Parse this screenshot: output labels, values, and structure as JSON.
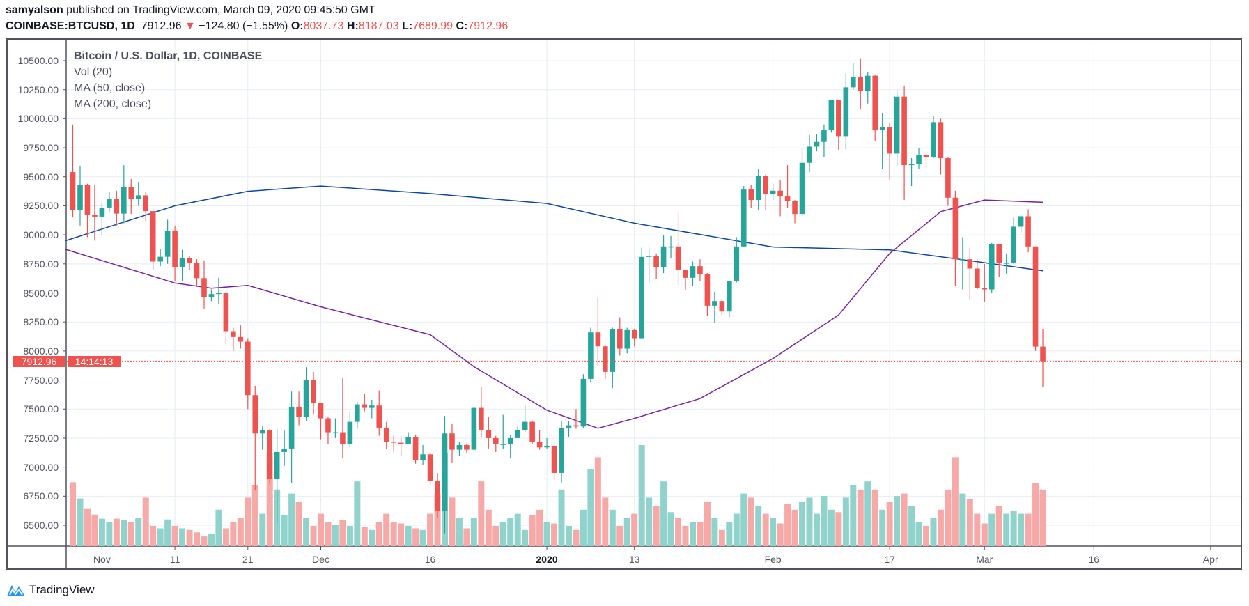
{
  "header": {
    "author": "samyalson",
    "published_text": "published on TradingView.com, March 09, 2020 09:45:50 GMT",
    "symbol": "COINBASE:BTCUSD, 1D",
    "last": "7912.96",
    "change": "−124.80 (−1.55%)",
    "o_label": "O:",
    "o": "8037.73",
    "h_label": "H:",
    "h": "8187.03",
    "l_label": "L:",
    "l": "7689.99",
    "c_label": "C:",
    "c": "7912.96"
  },
  "legend": {
    "title": "Bitcoin / U.S. Dollar, 1D, COINBASE",
    "vol": "Vol (20)",
    "ma50": "MA (50, close)",
    "ma200": "MA (200, close)"
  },
  "price_marker": {
    "price": "7912.96",
    "countdown": "14:14:13"
  },
  "footer": {
    "logo_text": "TradingView"
  },
  "colors": {
    "up": "#26a69a",
    "down": "#ef5350",
    "vol_up": "#8fd3cc",
    "vol_down": "#f7a9a7",
    "ma50": "#7b1fa2",
    "ma200": "#0d47a1",
    "grid": "#e6edf3"
  },
  "chart_data": {
    "type": "candlestick",
    "title": "Bitcoin / U.S. Dollar, 1D, COINBASE",
    "start_date": "2019-10-27",
    "interval": "1D",
    "ylim": [
      6350,
      10650
    ],
    "grid": true,
    "y_ticks": [
      "10500.00",
      "10250.00",
      "10000.00",
      "9750.00",
      "9500.00",
      "9250.00",
      "9000.00",
      "8750.00",
      "8500.00",
      "8250.00",
      "8000.00",
      "7750.00",
      "7500.00",
      "7250.00",
      "7000.00",
      "6750.00",
      "6500.00"
    ],
    "x_ticks": [
      {
        "label": "Nov",
        "date": "2019-11-01"
      },
      {
        "label": "11",
        "date": "2019-11-11"
      },
      {
        "label": "21",
        "date": "2019-11-21"
      },
      {
        "label": "Dec",
        "date": "2019-12-01"
      },
      {
        "label": "16",
        "date": "2019-12-16"
      },
      {
        "label": "2020",
        "date": "2020-01-01"
      },
      {
        "label": "13",
        "date": "2020-01-13"
      },
      {
        "label": "Feb",
        "date": "2020-02-01"
      },
      {
        "label": "17",
        "date": "2020-02-17"
      },
      {
        "label": "Mar",
        "date": "2020-03-01"
      },
      {
        "label": "16",
        "date": "2020-03-16"
      },
      {
        "label": "Apr",
        "date": "2020-04-01"
      }
    ],
    "first_open": 9260,
    "close": [
      9540,
      9213,
      9431,
      9175,
      9157,
      9235,
      9310,
      9183,
      9410,
      9307,
      9340,
      9204,
      8770,
      8811,
      9035,
      8721,
      8800,
      8757,
      8627,
      8462,
      8490,
      8500,
      8170,
      8120,
      8080,
      7620,
      7290,
      7320,
      6900,
      7130,
      7160,
      7520,
      7430,
      7750,
      7550,
      7420,
      7300,
      7300,
      7200,
      7390,
      7540,
      7510,
      7530,
      7340,
      7220,
      7210,
      7200,
      7260,
      7060,
      7110,
      6880,
      6620,
      7290,
      7150,
      7190,
      7150,
      7510,
      7320,
      7250,
      7200,
      7200,
      7250,
      7320,
      7390,
      7220,
      7170,
      7180,
      6950,
      7340,
      7360,
      7350,
      7760,
      8160,
      8040,
      7820,
      8190,
      8020,
      8180,
      8110,
      8810,
      8820,
      8720,
      8900,
      8900,
      8700,
      8630,
      8730,
      8660,
      8390,
      8430,
      8340,
      8600,
      8900,
      9390,
      9300,
      9510,
      9350,
      9380,
      9330,
      9290,
      9180,
      9620,
      9760,
      9800,
      9900,
      10160,
      9850,
      10270,
      10360,
      10240,
      10370,
      9900,
      9930,
      9700,
      10190,
      9600,
      9610,
      9690,
      9670,
      9970,
      9660,
      9320,
      8790,
      8790,
      8710,
      8540,
      8530,
      8920,
      8760,
      8760,
      9070,
      9160,
      8900,
      8037.73,
      7912.96
    ],
    "high": [
      9830,
      9950,
      9590,
      9440,
      9430,
      9280,
      9370,
      9380,
      9600,
      9480,
      9450,
      9370,
      9220,
      8880,
      9130,
      9080,
      8870,
      8820,
      8790,
      8780,
      8530,
      8630,
      8500,
      8200,
      8220,
      8110,
      7700,
      7350,
      7330,
      7330,
      7320,
      7650,
      7650,
      7860,
      7820,
      7550,
      7430,
      7420,
      7770,
      7480,
      7560,
      7630,
      7580,
      7660,
      7390,
      7270,
      7260,
      7300,
      7280,
      7190,
      7130,
      6950,
      7440,
      7370,
      7220,
      7200,
      7520,
      7690,
      7430,
      7270,
      7450,
      7280,
      7350,
      7530,
      7400,
      7320,
      7250,
      7190,
      7400,
      7400,
      7500,
      7800,
      8200,
      8460,
      8050,
      8200,
      8290,
      8200,
      8190,
      8890,
      8890,
      8840,
      9000,
      8990,
      9190,
      8700,
      8770,
      8790,
      8670,
      8510,
      8440,
      8600,
      8980,
      9420,
      9430,
      9570,
      9520,
      9440,
      9470,
      9600,
      9300,
      9750,
      9860,
      9870,
      9950,
      10160,
      10160,
      10390,
      10480,
      10520,
      10400,
      10380,
      10050,
      9960,
      10250,
      10280,
      9660,
      9750,
      9700,
      10020,
      10000,
      9670,
      9380,
      8980,
      8890,
      8790,
      8750,
      8930,
      8920,
      8840,
      9150,
      9180,
      9220,
      8900,
      8187.03
    ],
    "low": [
      9000,
      9150,
      9080,
      8980,
      8950,
      9000,
      9200,
      9080,
      9100,
      9180,
      9250,
      9120,
      8700,
      8730,
      8750,
      8600,
      8600,
      8700,
      8560,
      8360,
      8430,
      8400,
      8060,
      8000,
      8020,
      7500,
      6800,
      7150,
      6850,
      6520,
      7010,
      6860,
      7360,
      7400,
      7450,
      7240,
      7200,
      7250,
      7080,
      7170,
      7330,
      7480,
      7420,
      7270,
      7160,
      7130,
      7100,
      7200,
      7030,
      7020,
      6850,
      6560,
      6430,
      7040,
      7100,
      7120,
      7140,
      7260,
      7160,
      7130,
      7160,
      7080,
      7250,
      7300,
      7200,
      7150,
      7160,
      6900,
      6860,
      7260,
      7330,
      7340,
      7730,
      7870,
      7760,
      7680,
      7960,
      7980,
      8040,
      8100,
      8580,
      8620,
      8670,
      8800,
      8560,
      8520,
      8560,
      8600,
      8300,
      8240,
      8300,
      8290,
      8590,
      8900,
      9230,
      9210,
      9210,
      9300,
      9160,
      9230,
      9100,
      9160,
      9540,
      9720,
      9670,
      9880,
      9730,
      9730,
      10250,
      10080,
      10130,
      9810,
      9570,
      9470,
      9590,
      9300,
      9420,
      9570,
      9580,
      9660,
      9520,
      9250,
      8560,
      8530,
      8440,
      8530,
      8420,
      8500,
      8640,
      8660,
      8750,
      9020,
      8850,
      8000,
      7689.99
    ],
    "volume": [
      92,
      79,
      59,
      46,
      39,
      34,
      30,
      34,
      32,
      30,
      35,
      60,
      25,
      22,
      33,
      25,
      22,
      20,
      17,
      12,
      15,
      45,
      22,
      30,
      35,
      60,
      75,
      40,
      115,
      70,
      38,
      65,
      55,
      35,
      25,
      40,
      30,
      26,
      32,
      25,
      80,
      24,
      20,
      30,
      40,
      30,
      28,
      25,
      22,
      20,
      40,
      65,
      115,
      60,
      35,
      22,
      35,
      80,
      45,
      25,
      30,
      35,
      40,
      20,
      38,
      45,
      30,
      28,
      70,
      25,
      20,
      45,
      95,
      110,
      60,
      45,
      25,
      35,
      40,
      125,
      60,
      50,
      80,
      42,
      35,
      25,
      30,
      30,
      55,
      35,
      20,
      30,
      40,
      65,
      60,
      50,
      40,
      35,
      28,
      52,
      45,
      55,
      60,
      40,
      62,
      45,
      42,
      60,
      75,
      70,
      80,
      70,
      45,
      55,
      62,
      65,
      50,
      30,
      25,
      35,
      45,
      70,
      110,
      65,
      58,
      40,
      28,
      40,
      50,
      40,
      44,
      40,
      40,
      78,
      70
    ],
    "series": [
      {
        "name": "MA (50, close)",
        "points": [
          [
            "2019-10-27",
            8875
          ],
          [
            "2019-11-11",
            8585
          ],
          [
            "2019-11-16",
            8540
          ],
          [
            "2019-11-21",
            8565
          ],
          [
            "2019-12-01",
            8380
          ],
          [
            "2019-12-16",
            8140
          ],
          [
            "2019-12-22",
            7865
          ],
          [
            "2020-01-01",
            7490
          ],
          [
            "2020-01-08",
            7335
          ],
          [
            "2020-01-13",
            7420
          ],
          [
            "2020-01-22",
            7590
          ],
          [
            "2020-02-01",
            7935
          ],
          [
            "2020-02-10",
            8310
          ],
          [
            "2020-02-17",
            8840
          ],
          [
            "2020-02-24",
            9200
          ],
          [
            "2020-03-01",
            9300
          ],
          [
            "2020-03-09",
            9280
          ]
        ]
      },
      {
        "name": "MA (200, close)",
        "points": [
          [
            "2019-10-27",
            8950
          ],
          [
            "2019-11-11",
            9250
          ],
          [
            "2019-11-21",
            9375
          ],
          [
            "2019-12-01",
            9420
          ],
          [
            "2019-12-16",
            9355
          ],
          [
            "2020-01-01",
            9270
          ],
          [
            "2020-01-13",
            9100
          ],
          [
            "2020-02-01",
            8895
          ],
          [
            "2020-02-17",
            8870
          ],
          [
            "2020-03-01",
            8760
          ],
          [
            "2020-03-09",
            8690
          ]
        ]
      }
    ]
  }
}
